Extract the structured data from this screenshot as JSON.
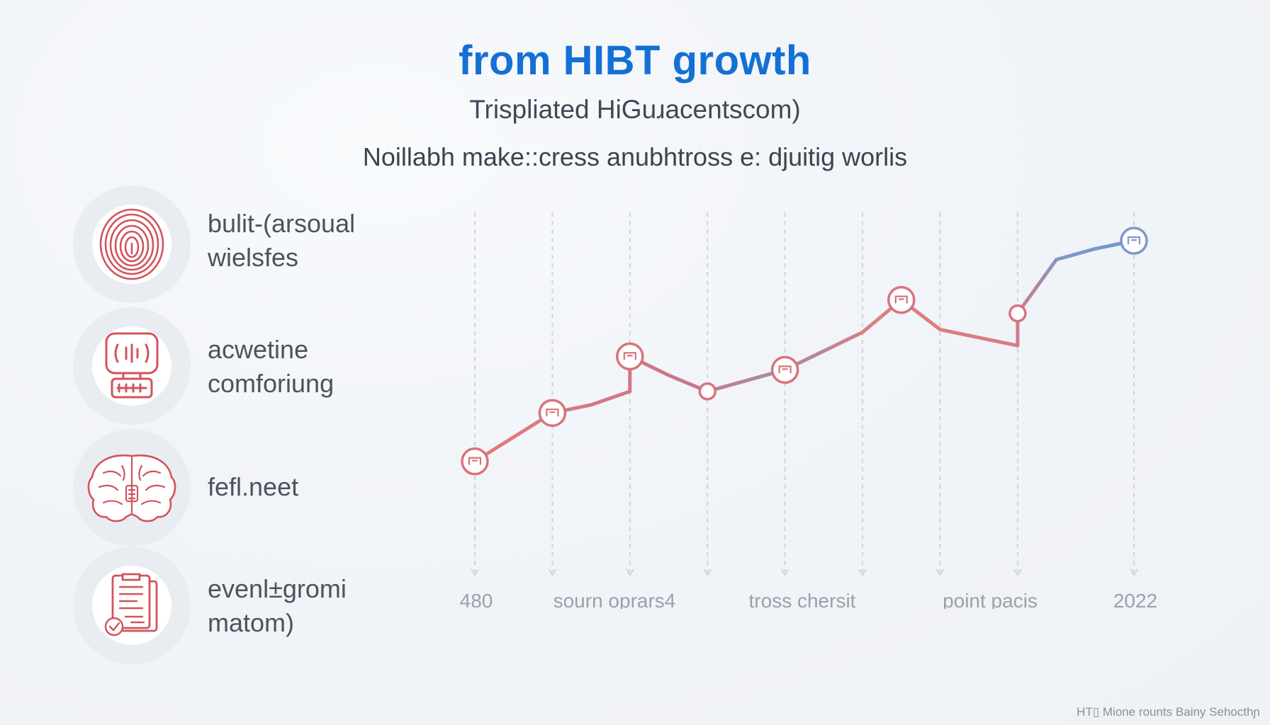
{
  "header": {
    "title": "from HIBT growth",
    "subtitle": "Trispliated HiGuɹacentscom)",
    "tagline": "Noillabh make::cress anubhtross e: djuitig worlis"
  },
  "features": [
    {
      "icon": "fingerprint-icon",
      "line1": "bulit-(arsoual",
      "line2": "wielsfes"
    },
    {
      "icon": "voice-device-icon",
      "line1": "acwetine",
      "line2": "comforiung"
    },
    {
      "icon": "brain-icon",
      "line1": "fefl.neet",
      "line2": ""
    },
    {
      "icon": "document-icon",
      "line1": "evenl±gromi",
      "line2": "matom)"
    }
  ],
  "footer": {
    "text": "HT▯ Mione rounts Bainy Sehocthɲ"
  },
  "colors": {
    "title": "#1570d4",
    "line_start": "#e8787c",
    "line_mid": "#a888a8",
    "line_end": "#6e94cc"
  },
  "chart_data": {
    "type": "line",
    "title": "",
    "xlabel": "",
    "ylabel": "",
    "ylim": [
      0,
      100
    ],
    "x_tick_labels": [
      "480",
      "sourn oprars4",
      "tross chersit",
      "point pacis",
      "2022"
    ],
    "series": [
      {
        "values": [
          {
            "x": 0,
            "y": 18,
            "marker": "icon"
          },
          {
            "x": 1,
            "y": 36,
            "marker": "icon"
          },
          {
            "x": 1.5,
            "y": 39,
            "marker": "none"
          },
          {
            "x": 2,
            "y": 44,
            "marker": "none"
          },
          {
            "x": 2,
            "y": 57,
            "marker": "icon"
          },
          {
            "x": 2.5,
            "y": 50,
            "marker": "none"
          },
          {
            "x": 3,
            "y": 44,
            "marker": "circle"
          },
          {
            "x": 4,
            "y": 52,
            "marker": "icon"
          },
          {
            "x": 5,
            "y": 66,
            "marker": "none"
          },
          {
            "x": 5.5,
            "y": 78,
            "marker": "icon"
          },
          {
            "x": 6,
            "y": 67,
            "marker": "none"
          },
          {
            "x": 7,
            "y": 61,
            "marker": "none"
          },
          {
            "x": 7,
            "y": 73,
            "marker": "circle"
          },
          {
            "x": 7.5,
            "y": 93,
            "marker": "none"
          },
          {
            "x": 8,
            "y": 97,
            "marker": "none"
          },
          {
            "x": 8.5,
            "y": 100,
            "marker": "icon"
          }
        ]
      }
    ],
    "grid": "vertical-dashed",
    "vertical_grid_x": [
      0,
      1,
      2,
      3,
      4,
      5,
      6,
      7
    ],
    "x_range": [
      0,
      8.5
    ]
  }
}
